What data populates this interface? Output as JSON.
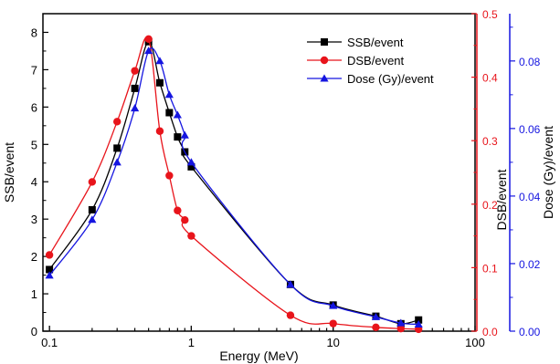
{
  "chart_data": {
    "type": "line",
    "x_scale": "log",
    "xlim": [
      0.09,
      100
    ],
    "xticks": [
      0.1,
      1,
      10,
      100
    ],
    "xtick_labels": [
      "0.1",
      "1",
      "10",
      "100"
    ],
    "xlabel": "Energy (MeV)",
    "axes": {
      "left": {
        "label": "SSB/event",
        "ylim": [
          0,
          8.5
        ],
        "ticks": [
          0,
          1,
          2,
          3,
          4,
          5,
          6,
          7,
          8
        ],
        "tick_labels": [
          "0",
          "1",
          "2",
          "3",
          "4",
          "5",
          "6",
          "7",
          "8"
        ],
        "color": "#000000"
      },
      "right_red": {
        "label": "DSB/event",
        "ylim": [
          0,
          0.5
        ],
        "ticks": [
          0.0,
          0.1,
          0.2,
          0.3,
          0.4,
          0.5
        ],
        "tick_labels": [
          "0.0",
          "0.1",
          "0.2",
          "0.3",
          "0.4",
          "0.5"
        ],
        "color": "#e8141b"
      },
      "right_blue": {
        "label": "Dose (Gy)/event",
        "ylim": [
          0,
          0.094
        ],
        "ticks": [
          0.0,
          0.02,
          0.04,
          0.06,
          0.08
        ],
        "tick_labels": [
          "0.00",
          "0.02",
          "0.04",
          "0.06",
          "0.08"
        ],
        "color": "#1515e0"
      }
    },
    "legend_position": "top-right",
    "series": [
      {
        "name": "SSB/event",
        "axis": "left",
        "color": "#000000",
        "marker": "square",
        "x": [
          0.1,
          0.2,
          0.3,
          0.4,
          0.5,
          0.6,
          0.7,
          0.8,
          0.9,
          1,
          5,
          10,
          20,
          30,
          40
        ],
        "y": [
          1.65,
          3.25,
          4.9,
          6.5,
          7.75,
          6.65,
          5.85,
          5.2,
          4.8,
          4.4,
          1.25,
          0.7,
          0.4,
          0.2,
          0.3
        ]
      },
      {
        "name": "DSB/event",
        "axis": "right_red",
        "color": "#e8141b",
        "marker": "circle",
        "x": [
          0.1,
          0.2,
          0.3,
          0.4,
          0.5,
          0.6,
          0.7,
          0.8,
          0.9,
          1,
          5,
          10,
          20,
          30,
          40
        ],
        "y": [
          0.12,
          0.235,
          0.33,
          0.41,
          0.46,
          0.315,
          0.245,
          0.19,
          0.175,
          0.15,
          0.025,
          0.012,
          0.006,
          0.004,
          0.003
        ]
      },
      {
        "name": "Dose (Gy)/event",
        "axis": "right_blue",
        "color": "#1515e0",
        "marker": "triangle",
        "x": [
          0.1,
          0.2,
          0.3,
          0.4,
          0.5,
          0.6,
          0.7,
          0.8,
          0.9,
          1,
          5,
          10,
          20,
          30,
          40
        ],
        "y": [
          0.0165,
          0.033,
          0.05,
          0.066,
          0.083,
          0.08,
          0.07,
          0.064,
          0.058,
          0.05,
          0.0138,
          0.0075,
          0.0042,
          0.0024,
          0.002
        ]
      }
    ]
  }
}
